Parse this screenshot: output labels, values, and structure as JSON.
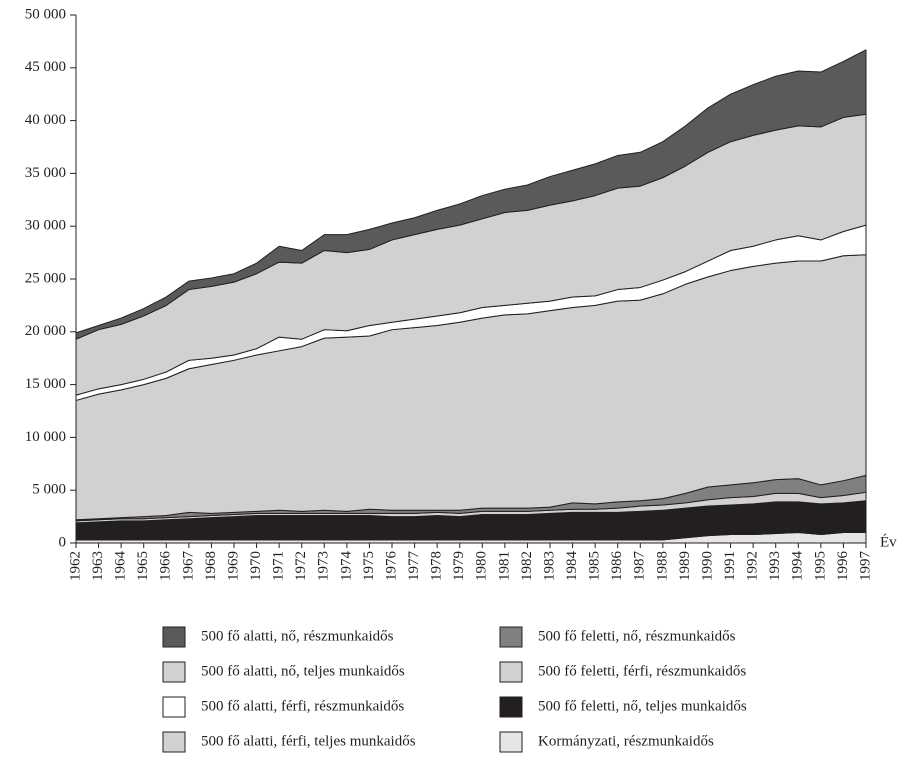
{
  "chart_data": {
    "type": "stacked-area",
    "x_label": "Év",
    "x": [
      1962,
      1963,
      1964,
      1965,
      1966,
      1967,
      1968,
      1969,
      1970,
      1971,
      1972,
      1973,
      1974,
      1975,
      1976,
      1977,
      1978,
      1979,
      1980,
      1981,
      1982,
      1983,
      1984,
      1985,
      1986,
      1987,
      1988,
      1989,
      1990,
      1991,
      1992,
      1993,
      1994,
      1995,
      1996,
      1997
    ],
    "xlim": [
      1962,
      1997
    ],
    "ylim": [
      0,
      50000
    ],
    "yticks": [
      0,
      {
        "value": 5000,
        "label": "5 000"
      },
      {
        "value": 10000,
        "label": "10 000"
      },
      {
        "value": 15000,
        "label": "15 000"
      },
      {
        "value": 20000,
        "label": "20 000"
      },
      {
        "value": 25000,
        "label": "25 000"
      },
      {
        "value": 30000,
        "label": "30 000"
      },
      {
        "value": 35000,
        "label": "35 000"
      },
      {
        "value": 40000,
        "label": "40 000"
      },
      {
        "value": 45000,
        "label": "45 000"
      },
      {
        "value": 50000,
        "label": "50 000"
      }
    ],
    "series": [
      {
        "name": "500 fő alatti, nő, részmunkaidős",
        "color": "#5a5a5a",
        "values": [
          600,
          400,
          600,
          700,
          800,
          800,
          800,
          800,
          1000,
          1500,
          1200,
          1500,
          1700,
          1900,
          1600,
          1600,
          1800,
          2000,
          2200,
          2200,
          2400,
          2700,
          2900,
          3000,
          3100,
          3200,
          3400,
          3800,
          4200,
          4500,
          4800,
          5100,
          5200,
          5200,
          5300,
          6100
        ]
      },
      {
        "name": "500 fő alatti, nő, teljes munkaidős",
        "color": "#d1d1d1",
        "values": [
          5300,
          5600,
          5700,
          6000,
          6300,
          6700,
          6800,
          6900,
          7100,
          7100,
          7200,
          7500,
          7400,
          7200,
          7800,
          8000,
          8200,
          8300,
          8400,
          8800,
          8800,
          9100,
          9100,
          9500,
          9600,
          9600,
          9700,
          10000,
          10300,
          10300,
          10500,
          10400,
          10400,
          10700,
          10800,
          10500
        ]
      },
      {
        "name": "500 fő alatti, férfi, részmunkaidős",
        "color": "#ffffff",
        "values": [
          500,
          500,
          500,
          500,
          600,
          800,
          600,
          500,
          600,
          1300,
          700,
          800,
          600,
          1000,
          700,
          800,
          900,
          900,
          1000,
          900,
          1000,
          900,
          1000,
          900,
          1100,
          1200,
          1300,
          1200,
          1500,
          1900,
          1900,
          2200,
          2400,
          2000,
          2300,
          2800
        ]
      },
      {
        "name": "500 fő alatti, férfi, teljes munkaidős",
        "color": "#d1d1d1",
        "values": [
          11300,
          11800,
          12100,
          12500,
          13000,
          13600,
          14100,
          14400,
          14800,
          15100,
          15600,
          16300,
          16500,
          16400,
          17100,
          17300,
          17500,
          17800,
          18000,
          18300,
          18400,
          18600,
          18500,
          18800,
          19000,
          19000,
          19400,
          19800,
          19900,
          20300,
          20500,
          20500,
          20600,
          21200,
          21300,
          20900
        ]
      },
      {
        "name": "500 fő feletti, nő, részmunkaidős",
        "color": "#808080",
        "values": [
          100,
          100,
          100,
          200,
          200,
          400,
          200,
          200,
          200,
          300,
          200,
          300,
          200,
          400,
          300,
          300,
          200,
          300,
          300,
          300,
          300,
          300,
          600,
          500,
          600,
          500,
          600,
          900,
          1200,
          1200,
          1300,
          1300,
          1400,
          1200,
          1400,
          1600
        ]
      },
      {
        "name": "500 fő feletti, férfi, részmunkaidős",
        "color": "#d1d1d1",
        "values": [
          200,
          200,
          200,
          200,
          200,
          200,
          200,
          200,
          200,
          200,
          200,
          200,
          200,
          200,
          300,
          300,
          300,
          300,
          300,
          300,
          300,
          300,
          300,
          300,
          400,
          500,
          500,
          500,
          600,
          700,
          700,
          800,
          800,
          600,
          700,
          800
        ]
      },
      {
        "name": "500 fő feletti, nő, teljes munkaidős",
        "color": "#231f20",
        "values": [
          1600,
          1700,
          1800,
          1800,
          1900,
          2000,
          2100,
          2200,
          2300,
          2300,
          2300,
          2300,
          2300,
          2300,
          2200,
          2200,
          2300,
          2200,
          2400,
          2400,
          2400,
          2500,
          2600,
          2600,
          2600,
          2700,
          2800,
          2800,
          2800,
          2800,
          2900,
          3000,
          2900,
          2900,
          2800,
          3000
        ]
      },
      {
        "name": "Kormányzati, részmunkaidős",
        "color": "#e6e6e6",
        "values": [
          300,
          300,
          300,
          300,
          300,
          300,
          300,
          300,
          300,
          300,
          300,
          300,
          300,
          300,
          300,
          300,
          300,
          300,
          300,
          300,
          300,
          300,
          300,
          300,
          300,
          300,
          300,
          500,
          700,
          800,
          800,
          900,
          1000,
          800,
          1000,
          1000
        ]
      }
    ]
  }
}
